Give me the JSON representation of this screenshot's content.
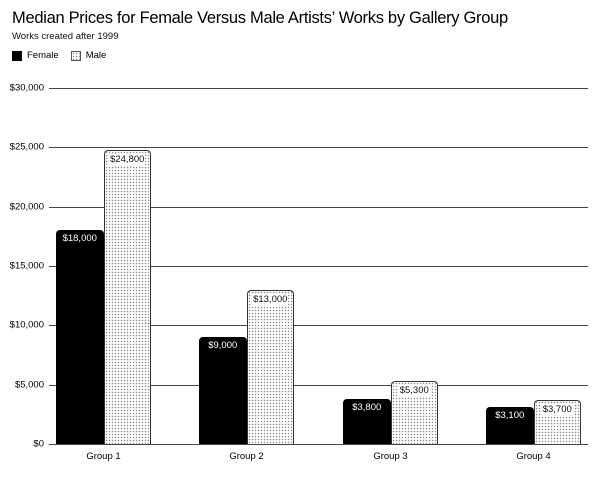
{
  "chart_data": {
    "type": "bar",
    "title": "Median Prices for Female Versus Male Artists’ Works by Gallery Group",
    "subtitle": "Works created after 1999",
    "xlabel": "",
    "ylabel": "",
    "categories": [
      "Group 1",
      "Group 2",
      "Group 3",
      "Group 4"
    ],
    "series": [
      {
        "name": "Female",
        "values": [
          18000,
          9000,
          3800,
          3100
        ],
        "labels": [
          "$18,000",
          "$9,000",
          "$3,800",
          "$3,100"
        ],
        "color": "#000000",
        "pattern": "solid"
      },
      {
        "name": "Male",
        "values": [
          24800,
          13000,
          5300,
          3700
        ],
        "labels": [
          "$24,800",
          "$13,000",
          "$5,300",
          "$3,700"
        ],
        "color": "#ffffff",
        "pattern": "dotted"
      }
    ],
    "ylim": [
      0,
      30000
    ],
    "yticks": [
      0,
      5000,
      10000,
      15000,
      20000,
      25000,
      30000
    ],
    "ytick_labels": [
      "$0",
      "$5,000",
      "$10,000",
      "$15,000",
      "$20,000",
      "$25,000",
      "$30,000"
    ],
    "grid": true,
    "legend_position": "top-left"
  },
  "header": {
    "title": "Median Prices for Female Versus Male Artists’ Works by Gallery Group",
    "subtitle": "Works created after 1999"
  },
  "legend": {
    "female": "Female",
    "male": "Male"
  }
}
